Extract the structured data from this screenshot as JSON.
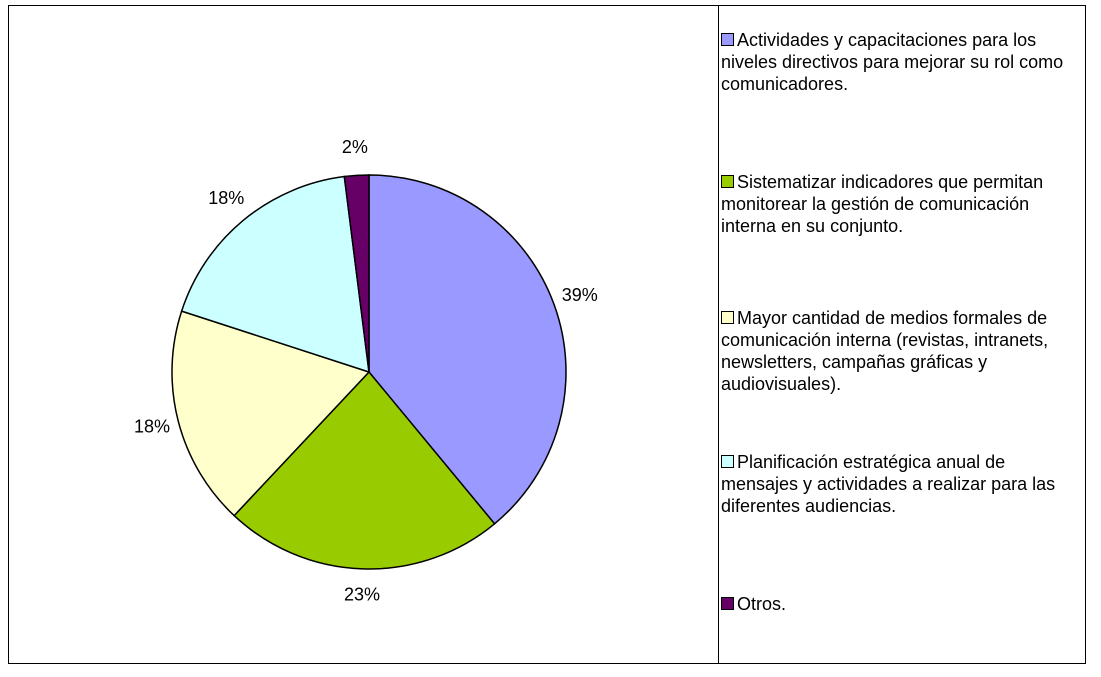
{
  "chart_data": {
    "type": "pie",
    "categories": [
      "Actividades y capacitaciones para los niveles directivos para mejorar su rol como comunicadores.",
      "Sistematizar indicadores que permitan monitorear la gestión de comunicación interna en su conjunto.",
      "Mayor cantidad de medios formales de comunicación interna (revistas, intranets, newsletters, campañas gráficas y audiovisuales).",
      "Planificación estratégica anual de mensajes y actividades a realizar para las diferentes audiencias.",
      "Otros."
    ],
    "values": [
      39,
      23,
      18,
      18,
      2
    ],
    "value_labels": [
      "39%",
      "23%",
      "18%",
      "18%",
      "2%"
    ],
    "colors": [
      "#9999ff",
      "#99cc00",
      "#ffffcc",
      "#ccffff",
      "#660066"
    ],
    "legend": "right"
  }
}
